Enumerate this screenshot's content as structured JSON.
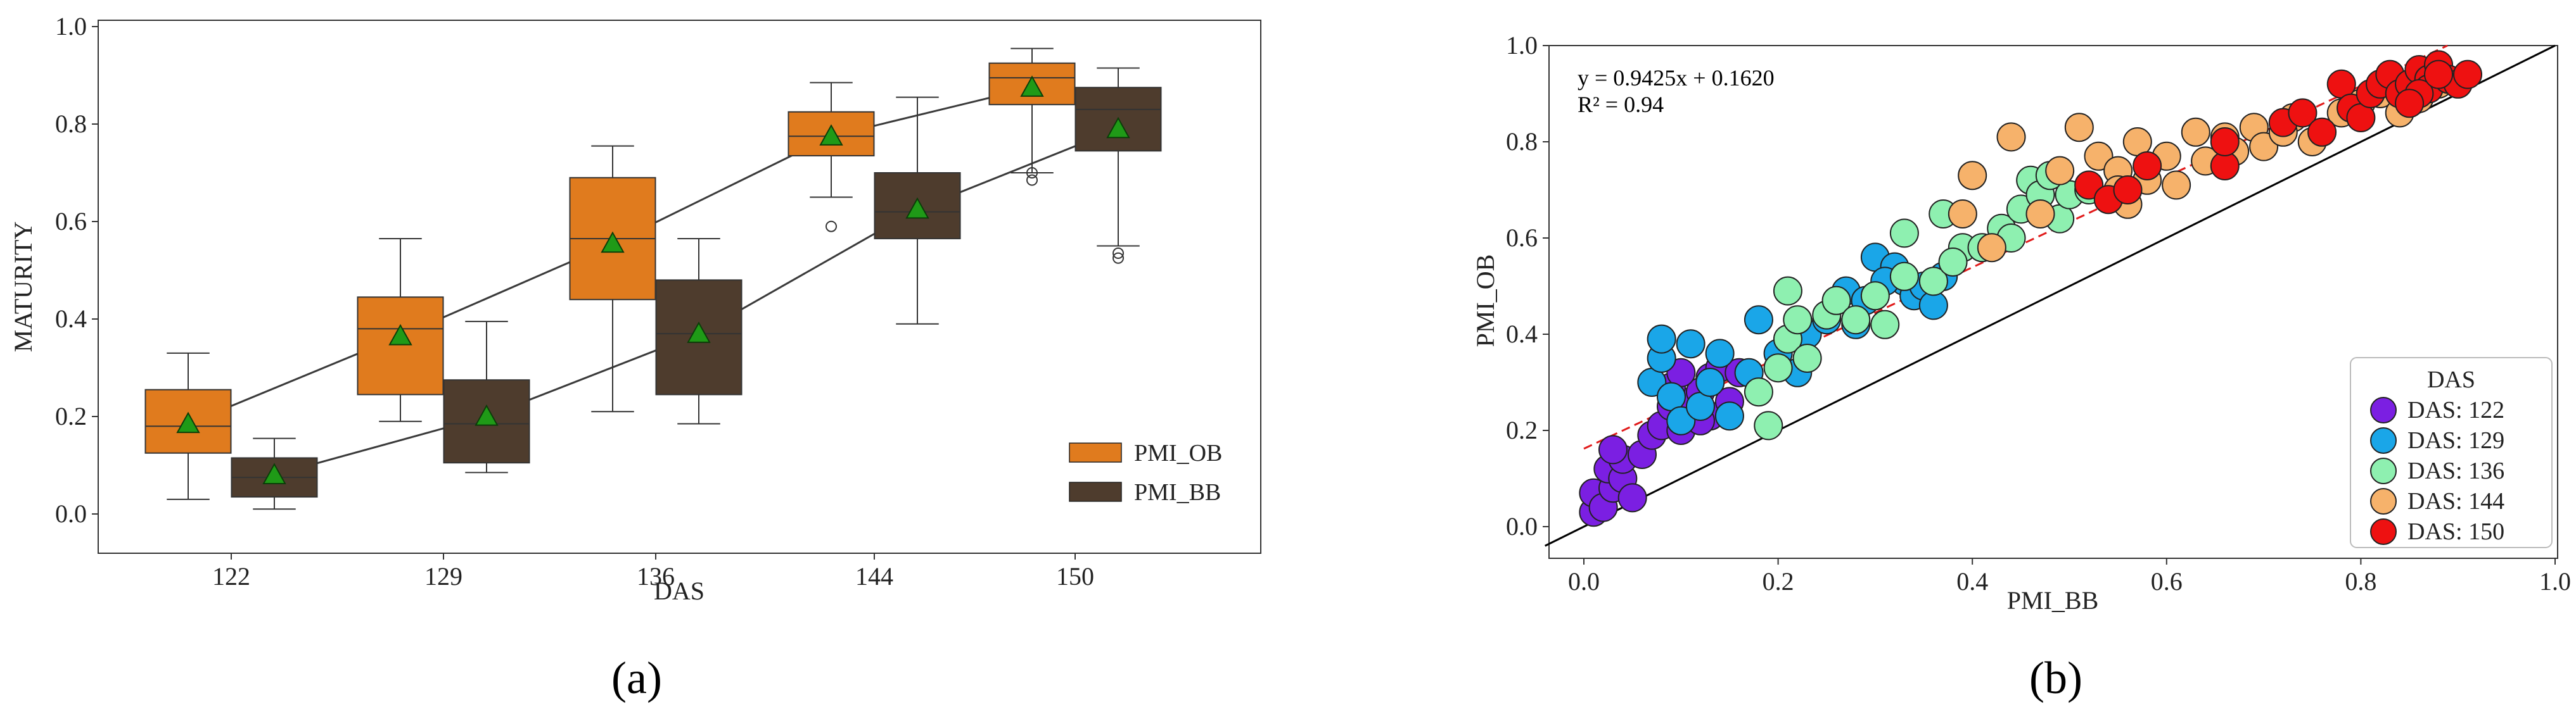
{
  "colors": {
    "ob": "#e07b1e",
    "bb": "#4e3c2d",
    "mean": "#1f9a17",
    "fit": "#e11b1b",
    "das122": "#7b1fe2",
    "das129": "#1aa6e8",
    "das136": "#8ef0b0",
    "das144": "#f6b26b",
    "das150": "#ee1111"
  },
  "chart_data": [
    {
      "panel_label": "(a)",
      "type": "box",
      "xlabel": "DAS",
      "ylabel": "MATURITY",
      "ylim": [
        0.0,
        1.0
      ],
      "yticks": [
        "0.0",
        "0.2",
        "0.4",
        "0.6",
        "0.8",
        "1.0"
      ],
      "categories": [
        "122",
        "129",
        "136",
        "144",
        "150"
      ],
      "legend_position": "lower-right",
      "series": [
        {
          "name": "PMI_OB",
          "color": "#e07b1e",
          "boxes": [
            {
              "whislo": 0.03,
              "q1": 0.125,
              "median": 0.18,
              "q3": 0.255,
              "whishi": 0.33,
              "mean": 0.185,
              "fliers": []
            },
            {
              "whislo": 0.19,
              "q1": 0.245,
              "median": 0.38,
              "q3": 0.445,
              "whishi": 0.565,
              "mean": 0.365,
              "fliers": []
            },
            {
              "whislo": 0.21,
              "q1": 0.44,
              "median": 0.565,
              "q3": 0.69,
              "whishi": 0.755,
              "mean": 0.555,
              "fliers": []
            },
            {
              "whislo": 0.65,
              "q1": 0.735,
              "median": 0.775,
              "q3": 0.825,
              "whishi": 0.885,
              "mean": 0.775,
              "fliers": [
                0.59
              ]
            },
            {
              "whislo": 0.7,
              "q1": 0.84,
              "median": 0.895,
              "q3": 0.925,
              "whishi": 0.955,
              "mean": 0.875,
              "fliers": [
                0.685,
                0.7
              ]
            }
          ]
        },
        {
          "name": "PMI_BB",
          "color": "#4e3c2d",
          "boxes": [
            {
              "whislo": 0.01,
              "q1": 0.035,
              "median": 0.075,
              "q3": 0.115,
              "whishi": 0.155,
              "mean": 0.08,
              "fliers": []
            },
            {
              "whislo": 0.085,
              "q1": 0.105,
              "median": 0.185,
              "q3": 0.275,
              "whishi": 0.395,
              "mean": 0.2,
              "fliers": []
            },
            {
              "whislo": 0.185,
              "q1": 0.245,
              "median": 0.37,
              "q3": 0.48,
              "whishi": 0.565,
              "mean": 0.37,
              "fliers": []
            },
            {
              "whislo": 0.39,
              "q1": 0.565,
              "median": 0.62,
              "q3": 0.7,
              "whishi": 0.855,
              "mean": 0.625,
              "fliers": []
            },
            {
              "whislo": 0.55,
              "q1": 0.745,
              "median": 0.83,
              "q3": 0.875,
              "whishi": 0.915,
              "mean": 0.79,
              "fliers": [
                0.525,
                0.535
              ]
            }
          ]
        }
      ]
    },
    {
      "panel_label": "(b)",
      "type": "scatter",
      "xlabel": "PMI_BB",
      "ylabel": "PMI_OB",
      "xlim": [
        -0.04,
        1.0
      ],
      "ylim": [
        -0.04,
        1.0
      ],
      "xticks": [
        "0.0",
        "0.2",
        "0.4",
        "0.6",
        "0.8",
        "1.0"
      ],
      "yticks": [
        "0.0",
        "0.2",
        "0.4",
        "0.6",
        "0.8",
        "1.0"
      ],
      "equation": "y = 0.9425x + 0.1620",
      "r2": "R² = 0.94",
      "fit": {
        "slope": 0.9425,
        "intercept": 0.162
      },
      "legend_title": "DAS",
      "legend_position": "lower-right",
      "series": [
        {
          "name": "DAS: 122",
          "color": "#7b1fe2",
          "points": [
            [
              0.01,
              0.03
            ],
            [
              0.01,
              0.07
            ],
            [
              0.02,
              0.04
            ],
            [
              0.03,
              0.08
            ],
            [
              0.025,
              0.12
            ],
            [
              0.04,
              0.1
            ],
            [
              0.05,
              0.06
            ],
            [
              0.04,
              0.14
            ],
            [
              0.06,
              0.15
            ],
            [
              0.07,
              0.19
            ],
            [
              0.08,
              0.21
            ],
            [
              0.09,
              0.25
            ],
            [
              0.1,
              0.2
            ],
            [
              0.11,
              0.26
            ],
            [
              0.12,
              0.28
            ],
            [
              0.13,
              0.31
            ],
            [
              0.13,
              0.23
            ],
            [
              0.14,
              0.33
            ],
            [
              0.15,
              0.26
            ],
            [
              0.16,
              0.32
            ],
            [
              0.12,
              0.22
            ],
            [
              0.03,
              0.16
            ],
            [
              0.09,
              0.29
            ],
            [
              0.1,
              0.32
            ]
          ]
        },
        {
          "name": "DAS: 129",
          "color": "#1aa6e8",
          "points": [
            [
              0.07,
              0.3
            ],
            [
              0.08,
              0.35
            ],
            [
              0.08,
              0.39
            ],
            [
              0.09,
              0.27
            ],
            [
              0.1,
              0.22
            ],
            [
              0.11,
              0.38
            ],
            [
              0.12,
              0.25
            ],
            [
              0.13,
              0.3
            ],
            [
              0.14,
              0.36
            ],
            [
              0.15,
              0.23
            ],
            [
              0.17,
              0.32
            ],
            [
              0.18,
              0.43
            ],
            [
              0.2,
              0.36
            ],
            [
              0.22,
              0.32
            ],
            [
              0.23,
              0.4
            ],
            [
              0.25,
              0.43
            ],
            [
              0.27,
              0.49
            ],
            [
              0.29,
              0.47
            ],
            [
              0.3,
              0.56
            ],
            [
              0.32,
              0.54
            ],
            [
              0.33,
              0.51
            ],
            [
              0.34,
              0.48
            ],
            [
              0.35,
              0.5
            ],
            [
              0.36,
              0.46
            ],
            [
              0.37,
              0.52
            ],
            [
              0.28,
              0.42
            ],
            [
              0.31,
              0.51
            ]
          ]
        },
        {
          "name": "DAS: 136",
          "color": "#8ef0b0",
          "points": [
            [
              0.19,
              0.21
            ],
            [
              0.18,
              0.28
            ],
            [
              0.2,
              0.33
            ],
            [
              0.21,
              0.39
            ],
            [
              0.21,
              0.49
            ],
            [
              0.22,
              0.43
            ],
            [
              0.23,
              0.35
            ],
            [
              0.25,
              0.44
            ],
            [
              0.26,
              0.47
            ],
            [
              0.28,
              0.43
            ],
            [
              0.3,
              0.48
            ],
            [
              0.31,
              0.42
            ],
            [
              0.33,
              0.52
            ],
            [
              0.33,
              0.61
            ],
            [
              0.36,
              0.51
            ],
            [
              0.37,
              0.65
            ],
            [
              0.39,
              0.58
            ],
            [
              0.41,
              0.58
            ],
            [
              0.43,
              0.62
            ],
            [
              0.45,
              0.66
            ],
            [
              0.46,
              0.72
            ],
            [
              0.47,
              0.69
            ],
            [
              0.48,
              0.73
            ],
            [
              0.49,
              0.64
            ],
            [
              0.5,
              0.69
            ],
            [
              0.52,
              0.7
            ],
            [
              0.44,
              0.6
            ],
            [
              0.38,
              0.55
            ]
          ]
        },
        {
          "name": "DAS: 144",
          "color": "#f6b26b",
          "points": [
            [
              0.4,
              0.73
            ],
            [
              0.39,
              0.65
            ],
            [
              0.42,
              0.58
            ],
            [
              0.44,
              0.81
            ],
            [
              0.47,
              0.65
            ],
            [
              0.49,
              0.74
            ],
            [
              0.51,
              0.83
            ],
            [
              0.53,
              0.77
            ],
            [
              0.55,
              0.74
            ],
            [
              0.56,
              0.67
            ],
            [
              0.57,
              0.8
            ],
            [
              0.58,
              0.72
            ],
            [
              0.6,
              0.77
            ],
            [
              0.61,
              0.71
            ],
            [
              0.63,
              0.82
            ],
            [
              0.64,
              0.76
            ],
            [
              0.66,
              0.81
            ],
            [
              0.67,
              0.78
            ],
            [
              0.69,
              0.83
            ],
            [
              0.7,
              0.79
            ],
            [
              0.73,
              0.85
            ],
            [
              0.75,
              0.8
            ],
            [
              0.78,
              0.86
            ],
            [
              0.8,
              0.88
            ],
            [
              0.82,
              0.9
            ],
            [
              0.84,
              0.86
            ],
            [
              0.86,
              0.89
            ],
            [
              0.88,
              0.92
            ],
            [
              0.55,
              0.7
            ],
            [
              0.72,
              0.82
            ]
          ]
        },
        {
          "name": "DAS: 150",
          "color": "#ee1111",
          "points": [
            [
              0.52,
              0.71
            ],
            [
              0.54,
              0.68
            ],
            [
              0.56,
              0.7
            ],
            [
              0.58,
              0.75
            ],
            [
              0.66,
              0.75
            ],
            [
              0.66,
              0.8
            ],
            [
              0.72,
              0.84
            ],
            [
              0.74,
              0.86
            ],
            [
              0.76,
              0.82
            ],
            [
              0.78,
              0.92
            ],
            [
              0.79,
              0.87
            ],
            [
              0.8,
              0.85
            ],
            [
              0.81,
              0.9
            ],
            [
              0.82,
              0.92
            ],
            [
              0.83,
              0.94
            ],
            [
              0.84,
              0.9
            ],
            [
              0.85,
              0.92
            ],
            [
              0.86,
              0.95
            ],
            [
              0.87,
              0.93
            ],
            [
              0.87,
              0.91
            ],
            [
              0.88,
              0.96
            ],
            [
              0.89,
              0.93
            ],
            [
              0.9,
              0.92
            ],
            [
              0.91,
              0.94
            ],
            [
              0.86,
              0.9
            ],
            [
              0.85,
              0.88
            ],
            [
              0.88,
              0.94
            ]
          ]
        }
      ]
    }
  ]
}
